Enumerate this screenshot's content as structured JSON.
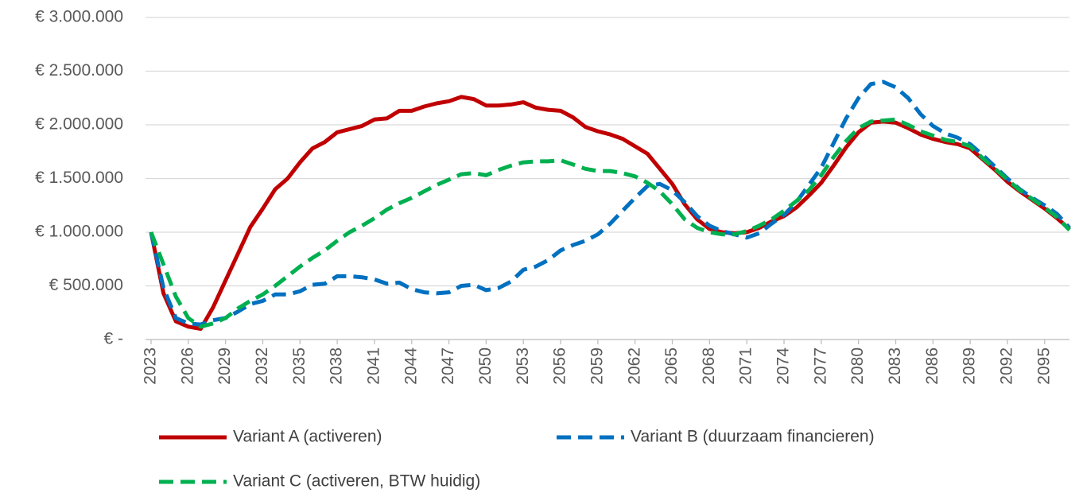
{
  "chart_data": {
    "type": "line",
    "categories": [
      "2023",
      null,
      null,
      "2026",
      null,
      null,
      "2029",
      null,
      null,
      "2032",
      null,
      null,
      "2035",
      null,
      null,
      "2038",
      null,
      null,
      "2041",
      null,
      null,
      "2044",
      null,
      null,
      "2047",
      null,
      null,
      "2050",
      null,
      null,
      "2053",
      null,
      null,
      "2056",
      null,
      null,
      "2059",
      null,
      null,
      "2062",
      null,
      null,
      "2065",
      null,
      null,
      "2068",
      null,
      null,
      "2071",
      null,
      null,
      "2074",
      null,
      null,
      "2077",
      null,
      null,
      "2080",
      null,
      null,
      "2083",
      null,
      null,
      "2086",
      null,
      null,
      "2089",
      null,
      null,
      "2092",
      null,
      null,
      "2095",
      null,
      null
    ],
    "series": [
      {
        "name": "Variant A (activeren)",
        "color": "#c00000",
        "dash": "solid",
        "values": [
          1000000,
          430000,
          170000,
          120000,
          100000,
          300000,
          550000,
          800000,
          1050000,
          1220000,
          1400000,
          1500000,
          1650000,
          1780000,
          1840000,
          1930000,
          1960000,
          1990000,
          2050000,
          2060000,
          2130000,
          2130000,
          2170000,
          2200000,
          2220000,
          2260000,
          2240000,
          2180000,
          2180000,
          2190000,
          2210000,
          2160000,
          2140000,
          2130000,
          2070000,
          1980000,
          1940000,
          1910000,
          1870000,
          1800000,
          1730000,
          1590000,
          1450000,
          1260000,
          1120000,
          1030000,
          1000000,
          990000,
          1000000,
          1040000,
          1100000,
          1150000,
          1230000,
          1340000,
          1460000,
          1620000,
          1790000,
          1930000,
          2020000,
          2030000,
          2020000,
          1970000,
          1910000,
          1870000,
          1840000,
          1820000,
          1780000,
          1680000,
          1580000,
          1470000,
          1380000,
          1300000,
          1220000,
          1130000,
          1030000
        ]
      },
      {
        "name": "Variant B (duurzaam financieren)",
        "color": "#0070c0",
        "dash": "dashed",
        "values": [
          1000000,
          480000,
          200000,
          150000,
          140000,
          180000,
          200000,
          260000,
          330000,
          360000,
          420000,
          420000,
          450000,
          510000,
          520000,
          590000,
          590000,
          580000,
          560000,
          520000,
          530000,
          470000,
          440000,
          430000,
          440000,
          500000,
          510000,
          460000,
          480000,
          540000,
          650000,
          680000,
          740000,
          830000,
          880000,
          920000,
          980000,
          1080000,
          1200000,
          1320000,
          1430000,
          1450000,
          1390000,
          1280000,
          1150000,
          1060000,
          1010000,
          980000,
          950000,
          990000,
          1080000,
          1160000,
          1280000,
          1440000,
          1600000,
          1830000,
          2060000,
          2250000,
          2380000,
          2400000,
          2350000,
          2250000,
          2100000,
          1990000,
          1920000,
          1880000,
          1820000,
          1720000,
          1610000,
          1500000,
          1400000,
          1320000,
          1250000,
          1170000,
          1040000
        ]
      },
      {
        "name": "Variant C (activeren, BTW huidig)",
        "color": "#00b050",
        "dash": "dashed",
        "values": [
          1000000,
          700000,
          400000,
          200000,
          120000,
          150000,
          200000,
          290000,
          360000,
          420000,
          500000,
          590000,
          680000,
          760000,
          830000,
          920000,
          1000000,
          1060000,
          1130000,
          1210000,
          1270000,
          1320000,
          1380000,
          1440000,
          1490000,
          1540000,
          1550000,
          1530000,
          1580000,
          1620000,
          1650000,
          1660000,
          1660000,
          1670000,
          1630000,
          1590000,
          1570000,
          1570000,
          1550000,
          1520000,
          1460000,
          1380000,
          1260000,
          1120000,
          1040000,
          1000000,
          980000,
          980000,
          1010000,
          1060000,
          1120000,
          1200000,
          1290000,
          1390000,
          1530000,
          1700000,
          1850000,
          1970000,
          2030000,
          2040000,
          2050000,
          2000000,
          1940000,
          1900000,
          1860000,
          1840000,
          1800000,
          1690000,
          1590000,
          1490000,
          1390000,
          1310000,
          1230000,
          1140000,
          1020000
        ]
      }
    ],
    "ylim": [
      0,
      3000000
    ],
    "yticks": [
      {
        "value": 0,
        "label": "€ -"
      },
      {
        "value": 500000,
        "label": "€ 500.000"
      },
      {
        "value": 1000000,
        "label": "€ 1.000.000"
      },
      {
        "value": 1500000,
        "label": "€ 1.500.000"
      },
      {
        "value": 2000000,
        "label": "€ 2.000.000"
      },
      {
        "value": 2500000,
        "label": "€ 2.500.000"
      },
      {
        "value": 3000000,
        "label": "€ 3.000.000"
      }
    ],
    "grid": true
  }
}
